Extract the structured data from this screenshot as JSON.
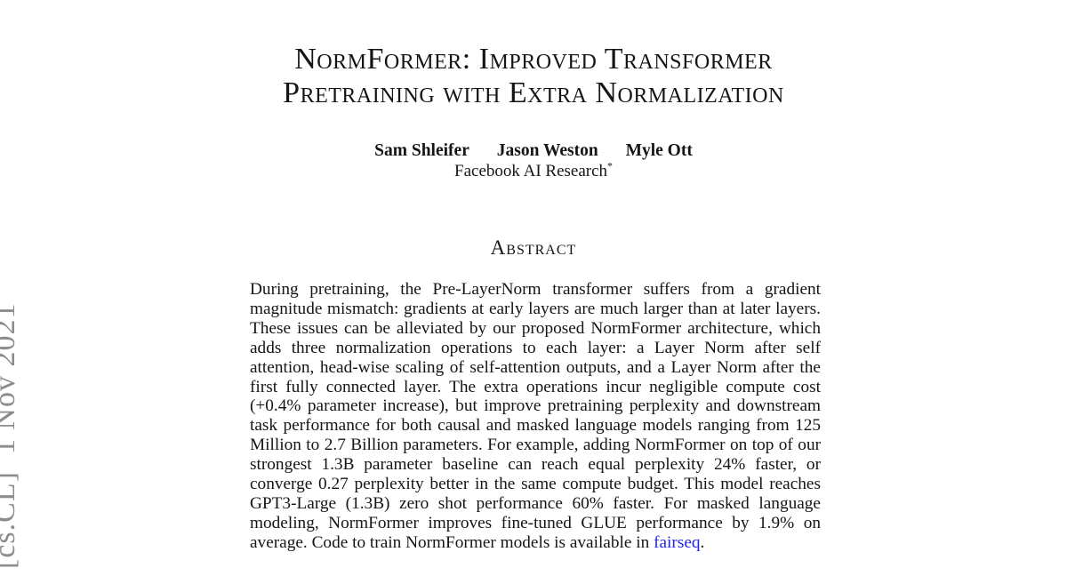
{
  "page": {
    "background": "#ffffff",
    "text_color": "#151515"
  },
  "arxiv_stamp": {
    "text": "[cs.CL]  1 Nov 2021",
    "color": "#8c8c8c"
  },
  "title": {
    "line1": "NormFormer: Improved Transformer",
    "line2": "Pretraining with Extra Normalization"
  },
  "authors": [
    "Sam Shleifer",
    "Jason Weston",
    "Myle Ott"
  ],
  "affiliation": {
    "name": "Facebook AI Research",
    "note": "*"
  },
  "abstract": {
    "heading": "Abstract",
    "body": "During pretraining, the Pre-LayerNorm transformer suffers from a gradient magnitude mismatch: gradients at early layers are much larger than at later layers. These issues can be alleviated by our proposed NormFormer architecture, which adds three normalization operations to each layer: a Layer Norm after self attention, head-wise scaling of self-attention outputs, and a Layer Norm after the first fully connected layer. The extra operations incur negligible compute cost (+0.4% parameter increase), but improve pretraining perplexity and downstream task performance for both causal and masked language models ranging from 125 Million to 2.7 Billion parameters. For example, adding NormFormer on top of our strongest 1.3B parameter baseline can reach equal perplexity 24% faster, or converge 0.27 perplexity better in the same compute budget. This model reaches GPT3-Large (1.3B) zero shot performance 60% faster. For masked language modeling, NormFormer improves fine-tuned GLUE performance by 1.9% on average. Code to train NormFormer models is available in ",
    "link_text": "fairseq",
    "link_color": "#2222ee",
    "after_link": "."
  }
}
